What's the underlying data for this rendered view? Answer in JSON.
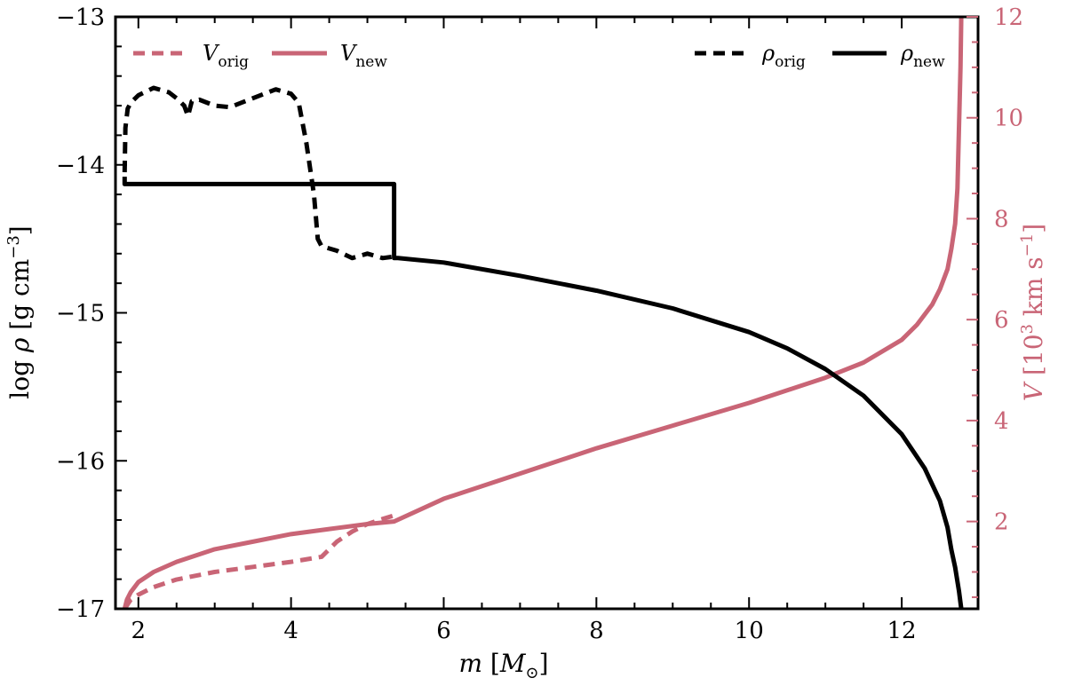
{
  "chart_data": {
    "type": "line",
    "x_axis": {
      "label": "m [M⊙]",
      "range": [
        1.7,
        13.0
      ],
      "ticks": [
        2,
        4,
        6,
        8,
        10,
        12
      ]
    },
    "y_left": {
      "label": "log ρ [g cm⁻³]",
      "range": [
        -17,
        -13
      ],
      "ticks": [
        -17,
        -16,
        -15,
        -14,
        -13
      ],
      "tick_labels": [
        "−17",
        "−16",
        "−15",
        "−14",
        "−13"
      ]
    },
    "y_right": {
      "label": "V [10³ km s⁻¹]",
      "range": [
        0.27,
        12
      ],
      "ticks": [
        2,
        4,
        6,
        8,
        10,
        12
      ],
      "color": "#c96576"
    },
    "colors": {
      "density": "#000000",
      "velocity": "#c96576"
    },
    "grid": false,
    "legends": [
      {
        "position": "top-left",
        "entries": [
          "V_orig",
          "V_new"
        ]
      },
      {
        "position": "top-right",
        "entries": [
          "ρ_orig",
          "ρ_new"
        ]
      }
    ],
    "series": [
      {
        "name": "ρ_orig",
        "axis": "left",
        "style": "dashed",
        "color": "#000000",
        "x": [
          1.82,
          1.83,
          1.86,
          1.9,
          2.0,
          2.2,
          2.4,
          2.5,
          2.6,
          2.65,
          2.7,
          2.8,
          3.0,
          3.2,
          3.5,
          3.8,
          4.0,
          4.1,
          4.2,
          4.3,
          4.35,
          4.4,
          4.6,
          4.8,
          5.0,
          5.2,
          5.35
        ],
        "y": [
          -14.05,
          -13.75,
          -13.62,
          -13.58,
          -13.53,
          -13.48,
          -13.51,
          -13.55,
          -13.6,
          -13.67,
          -13.57,
          -13.56,
          -13.6,
          -13.61,
          -13.55,
          -13.49,
          -13.52,
          -13.58,
          -13.85,
          -14.2,
          -14.5,
          -14.55,
          -14.58,
          -14.63,
          -14.6,
          -14.63,
          -14.62
        ]
      },
      {
        "name": "ρ_new",
        "axis": "left",
        "style": "solid",
        "color": "#000000",
        "x": [
          1.82,
          1.82,
          5.35,
          5.35,
          5.4,
          6.0,
          7.0,
          8.0,
          9.0,
          10.0,
          10.5,
          11.0,
          11.5,
          12.0,
          12.3,
          12.5,
          12.6,
          12.65,
          12.7,
          12.75,
          12.78
        ],
        "y": [
          -14.08,
          -14.13,
          -14.13,
          -14.63,
          -14.63,
          -14.66,
          -14.75,
          -14.85,
          -14.97,
          -15.13,
          -15.24,
          -15.38,
          -15.56,
          -15.82,
          -16.05,
          -16.27,
          -16.45,
          -16.6,
          -16.72,
          -16.88,
          -17.0
        ]
      },
      {
        "name": "V_orig",
        "axis": "right",
        "style": "dashed",
        "color": "#c96576",
        "x": [
          1.82,
          1.9,
          2.0,
          2.2,
          2.5,
          3.0,
          3.5,
          4.0,
          4.4,
          4.6,
          4.8,
          5.0,
          5.2,
          5.35
        ],
        "y": [
          0.27,
          0.45,
          0.55,
          0.7,
          0.85,
          1.0,
          1.1,
          1.2,
          1.3,
          1.6,
          1.8,
          1.95,
          2.05,
          2.12
        ]
      },
      {
        "name": "V_new",
        "axis": "right",
        "style": "solid",
        "color": "#c96576",
        "x": [
          1.82,
          1.85,
          1.9,
          2.0,
          2.2,
          2.5,
          3.0,
          3.5,
          4.0,
          4.5,
          5.0,
          5.35,
          6.0,
          7.0,
          8.0,
          9.0,
          10.0,
          11.0,
          11.5,
          12.0,
          12.2,
          12.4,
          12.5,
          12.6,
          12.65,
          12.7,
          12.73,
          12.75,
          12.77,
          12.78
        ],
        "y": [
          0.27,
          0.45,
          0.6,
          0.8,
          1.0,
          1.2,
          1.45,
          1.6,
          1.75,
          1.85,
          1.95,
          2.0,
          2.45,
          2.95,
          3.45,
          3.9,
          4.35,
          4.85,
          5.15,
          5.6,
          5.9,
          6.3,
          6.6,
          7.0,
          7.4,
          7.9,
          8.6,
          9.8,
          11.0,
          12.0
        ]
      }
    ]
  }
}
